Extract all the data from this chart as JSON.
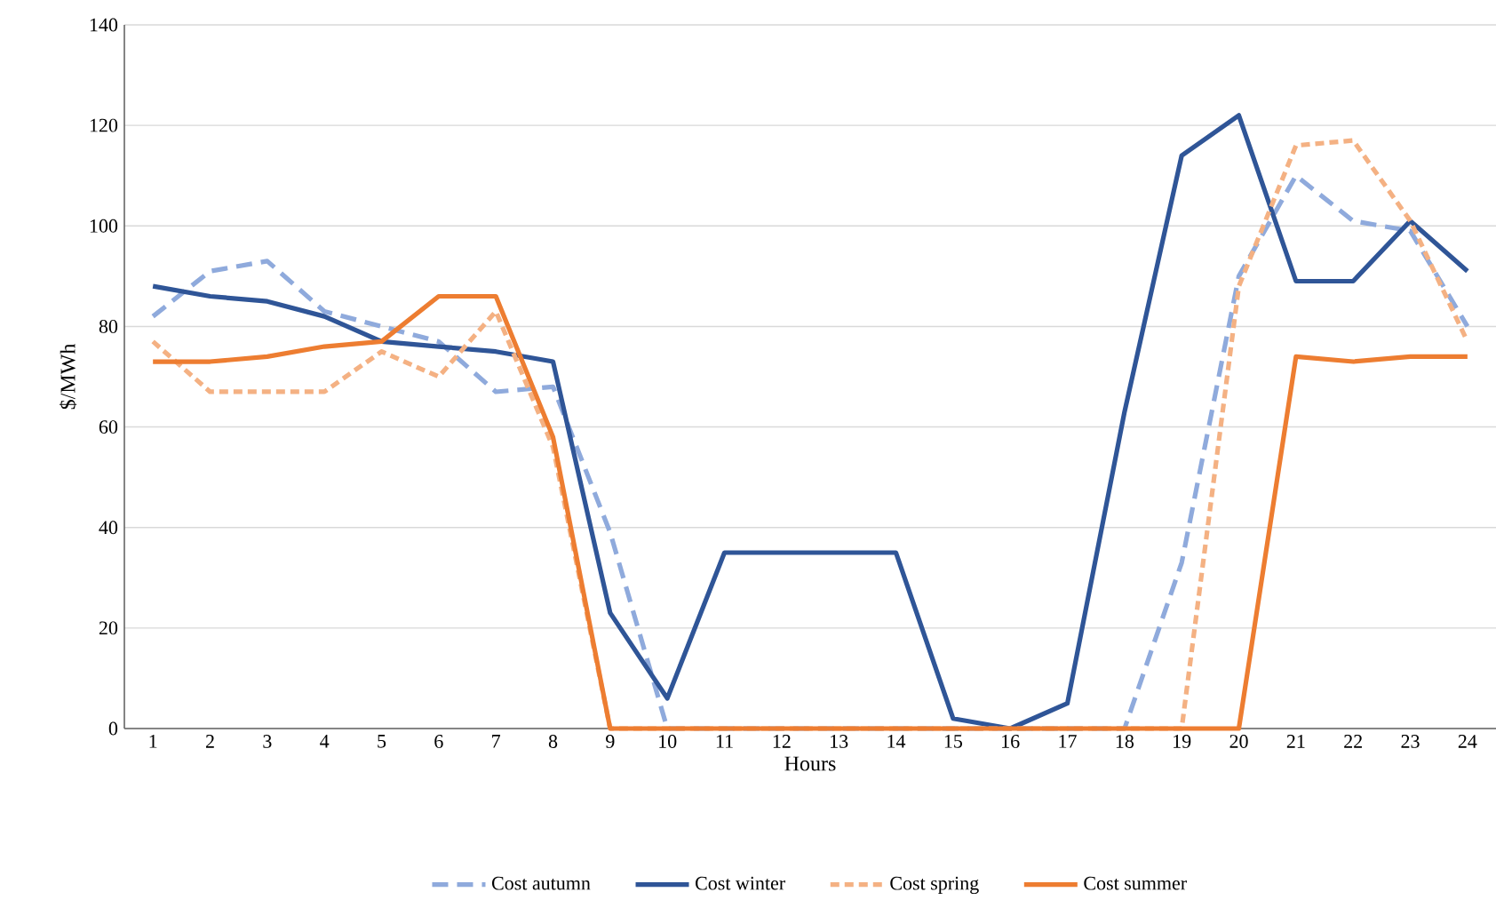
{
  "chart_data": {
    "type": "line",
    "xlabel": "Hours",
    "ylabel": "$/MWh",
    "categories": [
      "1",
      "2",
      "3",
      "4",
      "5",
      "6",
      "7",
      "8",
      "9",
      "10",
      "11",
      "12",
      "13",
      "14",
      "15",
      "16",
      "17",
      "18",
      "19",
      "20",
      "21",
      "22",
      "23",
      "24"
    ],
    "series": [
      {
        "name": "Cost autumn",
        "color": "#8faadc",
        "line_style": "dashed",
        "values": [
          82,
          91,
          93,
          83,
          80,
          77,
          67,
          68,
          39,
          0,
          0,
          0,
          0,
          0,
          0,
          0,
          0,
          0,
          33,
          90,
          110,
          101,
          99,
          80
        ]
      },
      {
        "name": "Cost winter",
        "color": "#2f5597",
        "line_style": "solid",
        "values": [
          88,
          86,
          85,
          82,
          77,
          76,
          75,
          73,
          23,
          6,
          35,
          35,
          35,
          35,
          2,
          0,
          5,
          63,
          114,
          122,
          89,
          89,
          101,
          91
        ]
      },
      {
        "name": "Cost spring",
        "color": "#f4b183",
        "line_style": "dotted",
        "values": [
          77,
          67,
          67,
          67,
          75,
          70,
          83,
          56,
          0,
          0,
          0,
          0,
          0,
          0,
          0,
          0,
          0,
          0,
          0,
          88,
          116,
          117,
          101,
          77
        ]
      },
      {
        "name": "Cost summer",
        "color": "#ed7d31",
        "line_style": "solid",
        "values": [
          73,
          73,
          74,
          76,
          77,
          86,
          86,
          58,
          0,
          0,
          0,
          0,
          0,
          0,
          0,
          0,
          0,
          0,
          0,
          0,
          74,
          73,
          74,
          74
        ]
      }
    ],
    "ylim": [
      0,
      140
    ],
    "yticks": [
      0,
      20,
      40,
      60,
      80,
      100,
      120,
      140
    ],
    "grid": "y",
    "legend": "bottom",
    "marker": "none"
  }
}
